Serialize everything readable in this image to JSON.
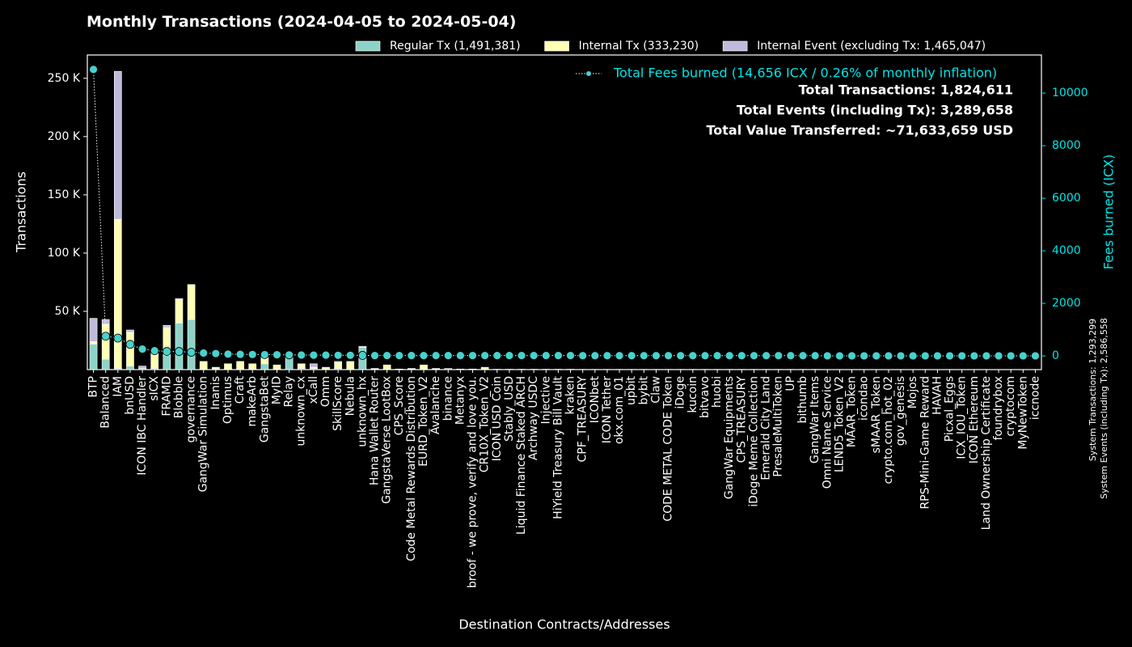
{
  "chart_data": {
    "type": "bar",
    "title": "Monthly Transactions (2024-04-05 to 2024-05-04)",
    "xlabel": "Destination Contracts/Addresses",
    "ylabel": "Transactions",
    "y2label": "Fees burned (ICX)",
    "annotations": [
      "Total Transactions: 1,824,611",
      "Total Events (including Tx): 3,289,658",
      "Total Value Transferred: ~71,633,659 USD"
    ],
    "side_notes": [
      "System Transactions: 1,293,299",
      "System Events (including Tx): 2,586,558"
    ],
    "stacked": true,
    "categories": [
      "BTP",
      "Balanced",
      "IAM",
      "bnUSD",
      "ICON IBC Handler",
      "sICX",
      "FRAMD",
      "Blobble",
      "governance",
      "GangWar Simulation",
      "Inanis",
      "Optimus",
      "Craft",
      "makeArb",
      "GangstaBet",
      "MyID",
      "Relay",
      "unknown_cx",
      "xCall",
      "Omm",
      "SkillScore",
      "Nebula",
      "unknown_hx",
      "Hana Wallet Router",
      "GangstaVerse LootBox",
      "CPS_Score",
      "Code Metal Rewards Distribution",
      "EURD_Token_V2",
      "Avalanche",
      "binance",
      "Metanyx",
      "broof - we prove, verify and love you.",
      "CR10X_Token_V2",
      "ICON USD Coin",
      "Stably_USD",
      "Liquid Finance Staked ARCH",
      "Archway USDC",
      "Injective",
      "HiYield Treasury Bill Vault",
      "kraken",
      "CPF_TREASURY",
      "ICONbet",
      "ICON Tether",
      "okx.com_01",
      "upbit",
      "bybit",
      "Claw",
      "CODE METAL CODE Token",
      "iDoge",
      "kucoin",
      "bitvavo",
      "huobi",
      "GangWar Equipments",
      "CPS_TREASURY",
      "iDoge Meme Collection",
      "Emerald City Land",
      "PresaleMultiToken",
      "UP",
      "bithumb",
      "GangWar Items",
      "Omni Name Service",
      "LEND5_Token_V2",
      "MAAR_Token",
      "icondao",
      "sMAAR_Token",
      "crypto.com_hot_02",
      "gov_genesis",
      "Mojos",
      "RPS-Mini-Game Reward",
      "HAVAH",
      "Picxal_Eggs",
      "ICX_IOU_Token",
      "ICON Ethereum",
      "Land Ownership Certificate",
      "foundrybox",
      "cryptocom",
      "MyNewToken",
      "iccnode"
    ],
    "series": [
      {
        "name": "Regular Tx (1,491,381)",
        "color": "#8dd3c7",
        "values": [
          22000,
          9000,
          1000,
          3000,
          1000,
          1000,
          12000,
          40000,
          43000,
          500,
          500,
          500,
          500,
          500,
          5000,
          500,
          11000,
          1000,
          1000,
          500,
          1000,
          500,
          19000,
          500,
          500,
          300,
          500,
          500,
          500,
          1000,
          300,
          300,
          500,
          300,
          300,
          300,
          300,
          300,
          300,
          300,
          200,
          200,
          200,
          200,
          200,
          200,
          200,
          200,
          200,
          200,
          200,
          200,
          200,
          200,
          200,
          200,
          200,
          200,
          200,
          200,
          100,
          100,
          100,
          100,
          100,
          100,
          100,
          100,
          100,
          100,
          100,
          100,
          100,
          100,
          100,
          100,
          100,
          100
        ]
      },
      {
        "name": "Internal Tx (333,230)",
        "color": "#ffffb3",
        "values": [
          2000,
          30000,
          128000,
          29000,
          0,
          14000,
          24000,
          20000,
          30000,
          6500,
          1000,
          4500,
          6500,
          4500,
          7000,
          3500,
          0,
          3500,
          1000,
          1500,
          5000,
          6500,
          0,
          500,
          3500,
          200,
          500,
          3500,
          500,
          0,
          200,
          200,
          1500,
          0,
          0,
          0,
          0,
          0,
          0,
          0,
          0,
          0,
          0,
          0,
          0,
          0,
          0,
          0,
          0,
          0,
          0,
          0,
          0,
          0,
          0,
          0,
          0,
          0,
          0,
          0,
          0,
          0,
          0,
          0,
          0,
          0,
          0,
          0,
          0,
          0,
          0,
          0,
          0,
          0,
          0,
          0,
          0,
          0
        ]
      },
      {
        "name": "Internal Event (excluding Tx: 1,465,047)",
        "color": "#bebada",
        "values": [
          20000,
          4000,
          127000,
          2000,
          2000,
          1000,
          2000,
          1000,
          0,
          0,
          500,
          0,
          0,
          0,
          0,
          0,
          1000,
          500,
          3000,
          0,
          1000,
          0,
          1000,
          0,
          0,
          0,
          0,
          0,
          0,
          0,
          0,
          0,
          0,
          0,
          0,
          0,
          0,
          0,
          0,
          0,
          0,
          0,
          0,
          0,
          0,
          0,
          0,
          0,
          0,
          0,
          0,
          0,
          0,
          0,
          0,
          0,
          0,
          0,
          0,
          0,
          0,
          0,
          0,
          0,
          0,
          0,
          0,
          0,
          0,
          0,
          0,
          0,
          0,
          0,
          0,
          0,
          0,
          0
        ]
      },
      {
        "name": "Total Fees burned (14,656 ICX / 0.26% of monthly inflation)",
        "color": "#48d1cc",
        "type": "line",
        "axis": "y2",
        "values": [
          10900,
          750,
          680,
          440,
          260,
          200,
          170,
          170,
          140,
          110,
          90,
          70,
          60,
          55,
          50,
          45,
          40,
          35,
          30,
          30,
          25,
          25,
          20,
          15,
          15,
          15,
          15,
          15,
          15,
          15,
          15,
          15,
          15,
          15,
          15,
          15,
          15,
          15,
          15,
          15,
          10,
          10,
          10,
          10,
          10,
          10,
          10,
          10,
          10,
          10,
          10,
          10,
          10,
          10,
          10,
          10,
          10,
          10,
          10,
          10,
          5,
          5,
          5,
          5,
          5,
          5,
          5,
          5,
          5,
          5,
          5,
          5,
          5,
          5,
          5,
          5,
          5,
          5
        ]
      }
    ],
    "ylim": [
      0,
      270000
    ],
    "yticks": [
      {
        "value": 50000,
        "label": "50 K"
      },
      {
        "value": 100000,
        "label": "100 K"
      },
      {
        "value": 150000,
        "label": "150 K"
      },
      {
        "value": 200000,
        "label": "200 K"
      },
      {
        "value": 250000,
        "label": "250 K"
      }
    ],
    "y2lim": [
      -520,
      11450
    ],
    "y2ticks": [
      0,
      2000,
      4000,
      6000,
      8000,
      10000
    ]
  }
}
